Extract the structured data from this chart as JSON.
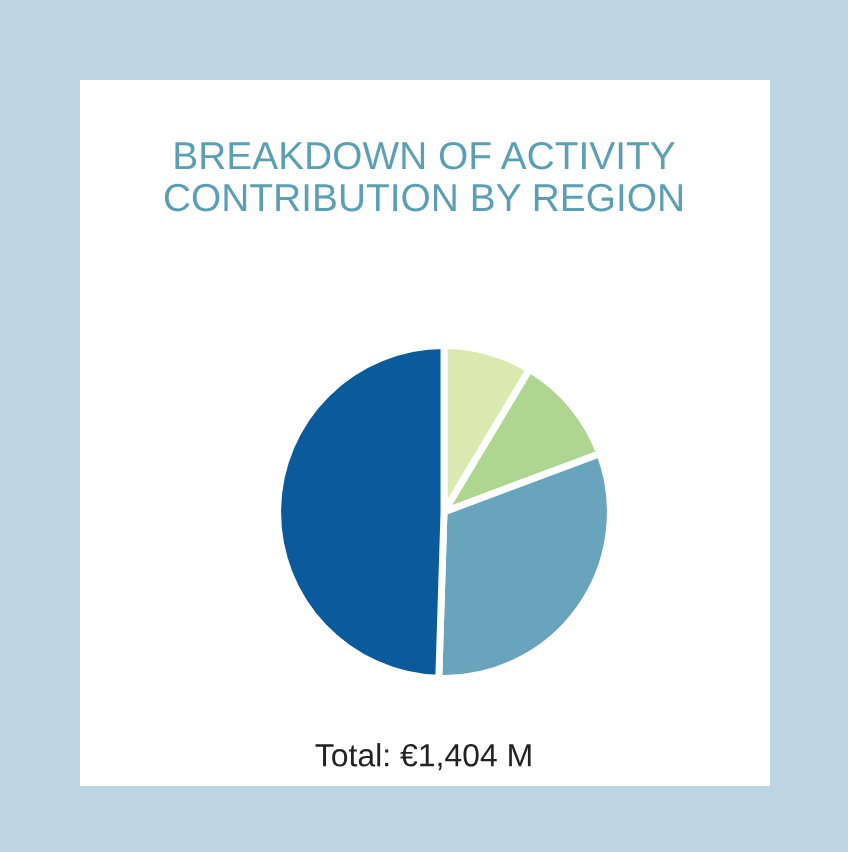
{
  "chart_data": {
    "type": "pie",
    "title": "BREAKDOWN OF ACTIVITY\nCONTRIBUTION BY REGION",
    "categories": [
      null,
      null,
      null,
      null
    ],
    "values": [
      8.6,
      10.7,
      31.2,
      49.5
    ],
    "colors": [
      "#dce9b0",
      "#aed690",
      "#69a4bd",
      "#0a5a9c"
    ],
    "annotations": [
      "Total: €1,404 M"
    ]
  }
}
